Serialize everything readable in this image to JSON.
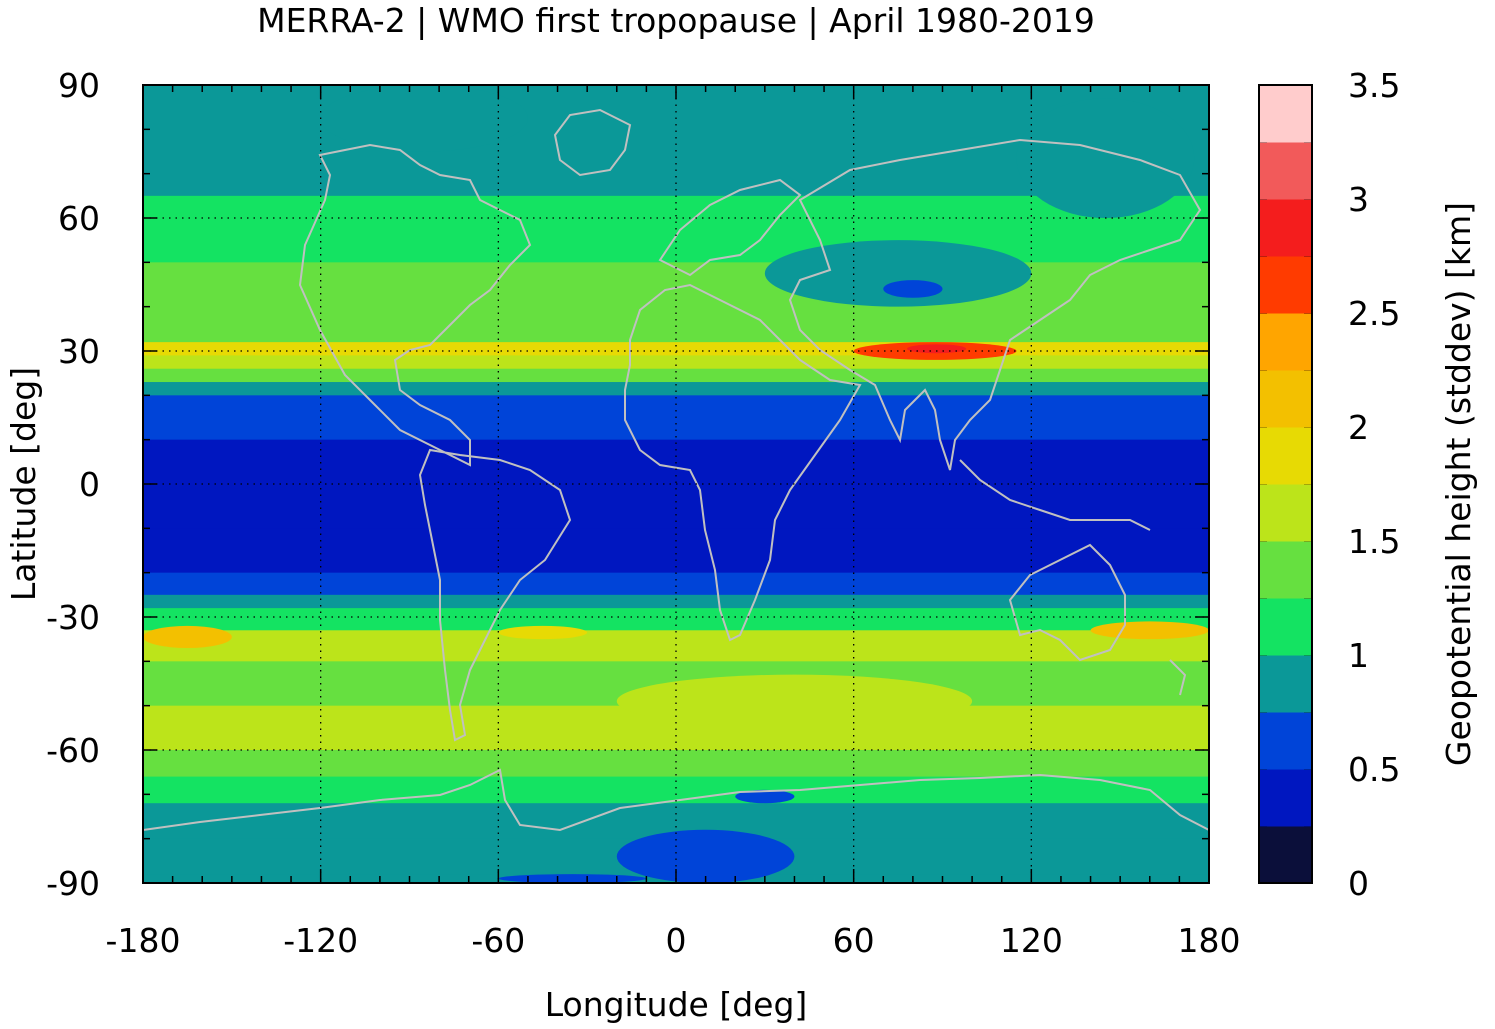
{
  "chart_data": {
    "type": "heatmap",
    "title": "MERRA-2 | WMO first tropopause | April 1980-2019",
    "xlabel": "Longitude [deg]",
    "ylabel": "Latitude [deg]",
    "xlim": [
      -180,
      180
    ],
    "ylim": [
      -90,
      90
    ],
    "x_ticks": [
      "-180",
      "-120",
      "-60",
      "0",
      "60",
      "120",
      "180"
    ],
    "y_ticks": [
      "90",
      "60",
      "30",
      "0",
      "-30",
      "-60",
      "-90"
    ],
    "grid": true,
    "colorbar": {
      "label": "Geopotential height (stddev) [km]",
      "range": [
        0,
        3.5
      ],
      "ticks": [
        "0",
        "0.5",
        "1",
        "1.5",
        "2",
        "2.5",
        "3",
        "3.5"
      ],
      "levels": [
        {
          "from": 0.0,
          "to": 0.25,
          "color": "#0b0f3a"
        },
        {
          "from": 0.25,
          "to": 0.5,
          "color": "#0017c0"
        },
        {
          "from": 0.5,
          "to": 0.75,
          "color": "#0044d8"
        },
        {
          "from": 0.75,
          "to": 1.0,
          "color": "#0b9898"
        },
        {
          "from": 1.0,
          "to": 1.25,
          "color": "#14e362"
        },
        {
          "from": 1.25,
          "to": 1.5,
          "color": "#66e040"
        },
        {
          "from": 1.5,
          "to": 1.75,
          "color": "#bce41a"
        },
        {
          "from": 1.75,
          "to": 2.0,
          "color": "#e7da04"
        },
        {
          "from": 2.0,
          "to": 2.25,
          "color": "#f3c000"
        },
        {
          "from": 2.25,
          "to": 2.5,
          "color": "#ffa500"
        },
        {
          "from": 2.5,
          "to": 2.75,
          "color": "#ff3b00"
        },
        {
          "from": 2.75,
          "to": 3.0,
          "color": "#f41d1d"
        },
        {
          "from": 3.0,
          "to": 3.25,
          "color": "#f25a5a"
        },
        {
          "from": 3.25,
          "to": 3.5,
          "color": "#ffcccc"
        }
      ]
    },
    "zonal_profile": [
      {
        "lat": 90,
        "value": 0.9
      },
      {
        "lat": 75,
        "value": 0.95
      },
      {
        "lat": 65,
        "value": 1.2
      },
      {
        "lat": 50,
        "value": 1.3
      },
      {
        "lat": 40,
        "value": 1.4
      },
      {
        "lat": 32,
        "value": 1.8
      },
      {
        "lat": 29,
        "value": 1.7
      },
      {
        "lat": 26,
        "value": 1.3
      },
      {
        "lat": 23,
        "value": 0.9
      },
      {
        "lat": 20,
        "value": 0.6
      },
      {
        "lat": 10,
        "value": 0.4
      },
      {
        "lat": 0,
        "value": 0.35
      },
      {
        "lat": -10,
        "value": 0.4
      },
      {
        "lat": -20,
        "value": 0.6
      },
      {
        "lat": -25,
        "value": 0.9
      },
      {
        "lat": -28,
        "value": 1.2
      },
      {
        "lat": -33,
        "value": 1.6
      },
      {
        "lat": -40,
        "value": 1.4
      },
      {
        "lat": -50,
        "value": 1.5
      },
      {
        "lat": -60,
        "value": 1.3
      },
      {
        "lat": -66,
        "value": 1.1
      },
      {
        "lat": -72,
        "value": 0.9
      },
      {
        "lat": -80,
        "value": 0.95
      },
      {
        "lat": -88,
        "value": 0.8
      },
      {
        "lat": -90,
        "value": 0.6
      }
    ],
    "features": [
      {
        "lon_range": [
          60,
          115
        ],
        "lat_range": [
          28,
          32
        ],
        "value": 2.6
      },
      {
        "lon_range": [
          78,
          98
        ],
        "lat_range": [
          29.5,
          31.5
        ],
        "value": 2.8
      },
      {
        "lon_range": [
          30,
          120
        ],
        "lat_range": [
          40,
          55
        ],
        "value": 0.9
      },
      {
        "lon_range": [
          70,
          90
        ],
        "lat_range": [
          42,
          46
        ],
        "value": 0.6
      },
      {
        "lon_range": [
          115,
          175
        ],
        "lat_range": [
          60,
          87
        ],
        "value": 0.95
      },
      {
        "lon_range": [
          -120,
          -50
        ],
        "lat_range": [
          75,
          90
        ],
        "value": 0.9
      },
      {
        "lon_range": [
          -180,
          -150
        ],
        "lat_range": [
          -37,
          -32
        ],
        "value": 2.1
      },
      {
        "lon_range": [
          -60,
          -30
        ],
        "lat_range": [
          -35,
          -32
        ],
        "value": 1.9
      },
      {
        "lon_range": [
          140,
          180
        ],
        "lat_range": [
          -35,
          -31
        ],
        "value": 2.0
      },
      {
        "lon_range": [
          -20,
          100
        ],
        "lat_range": [
          -55,
          -43
        ],
        "value": 1.6
      },
      {
        "lon_range": [
          -20,
          40
        ],
        "lat_range": [
          -90,
          -78
        ],
        "value": 0.6
      },
      {
        "lon_range": [
          20,
          40
        ],
        "lat_range": [
          -72,
          -69
        ],
        "value": 0.6
      },
      {
        "lon_range": [
          -60,
          -10
        ],
        "lat_range": [
          -90,
          -88
        ],
        "value": 0.6
      }
    ]
  }
}
